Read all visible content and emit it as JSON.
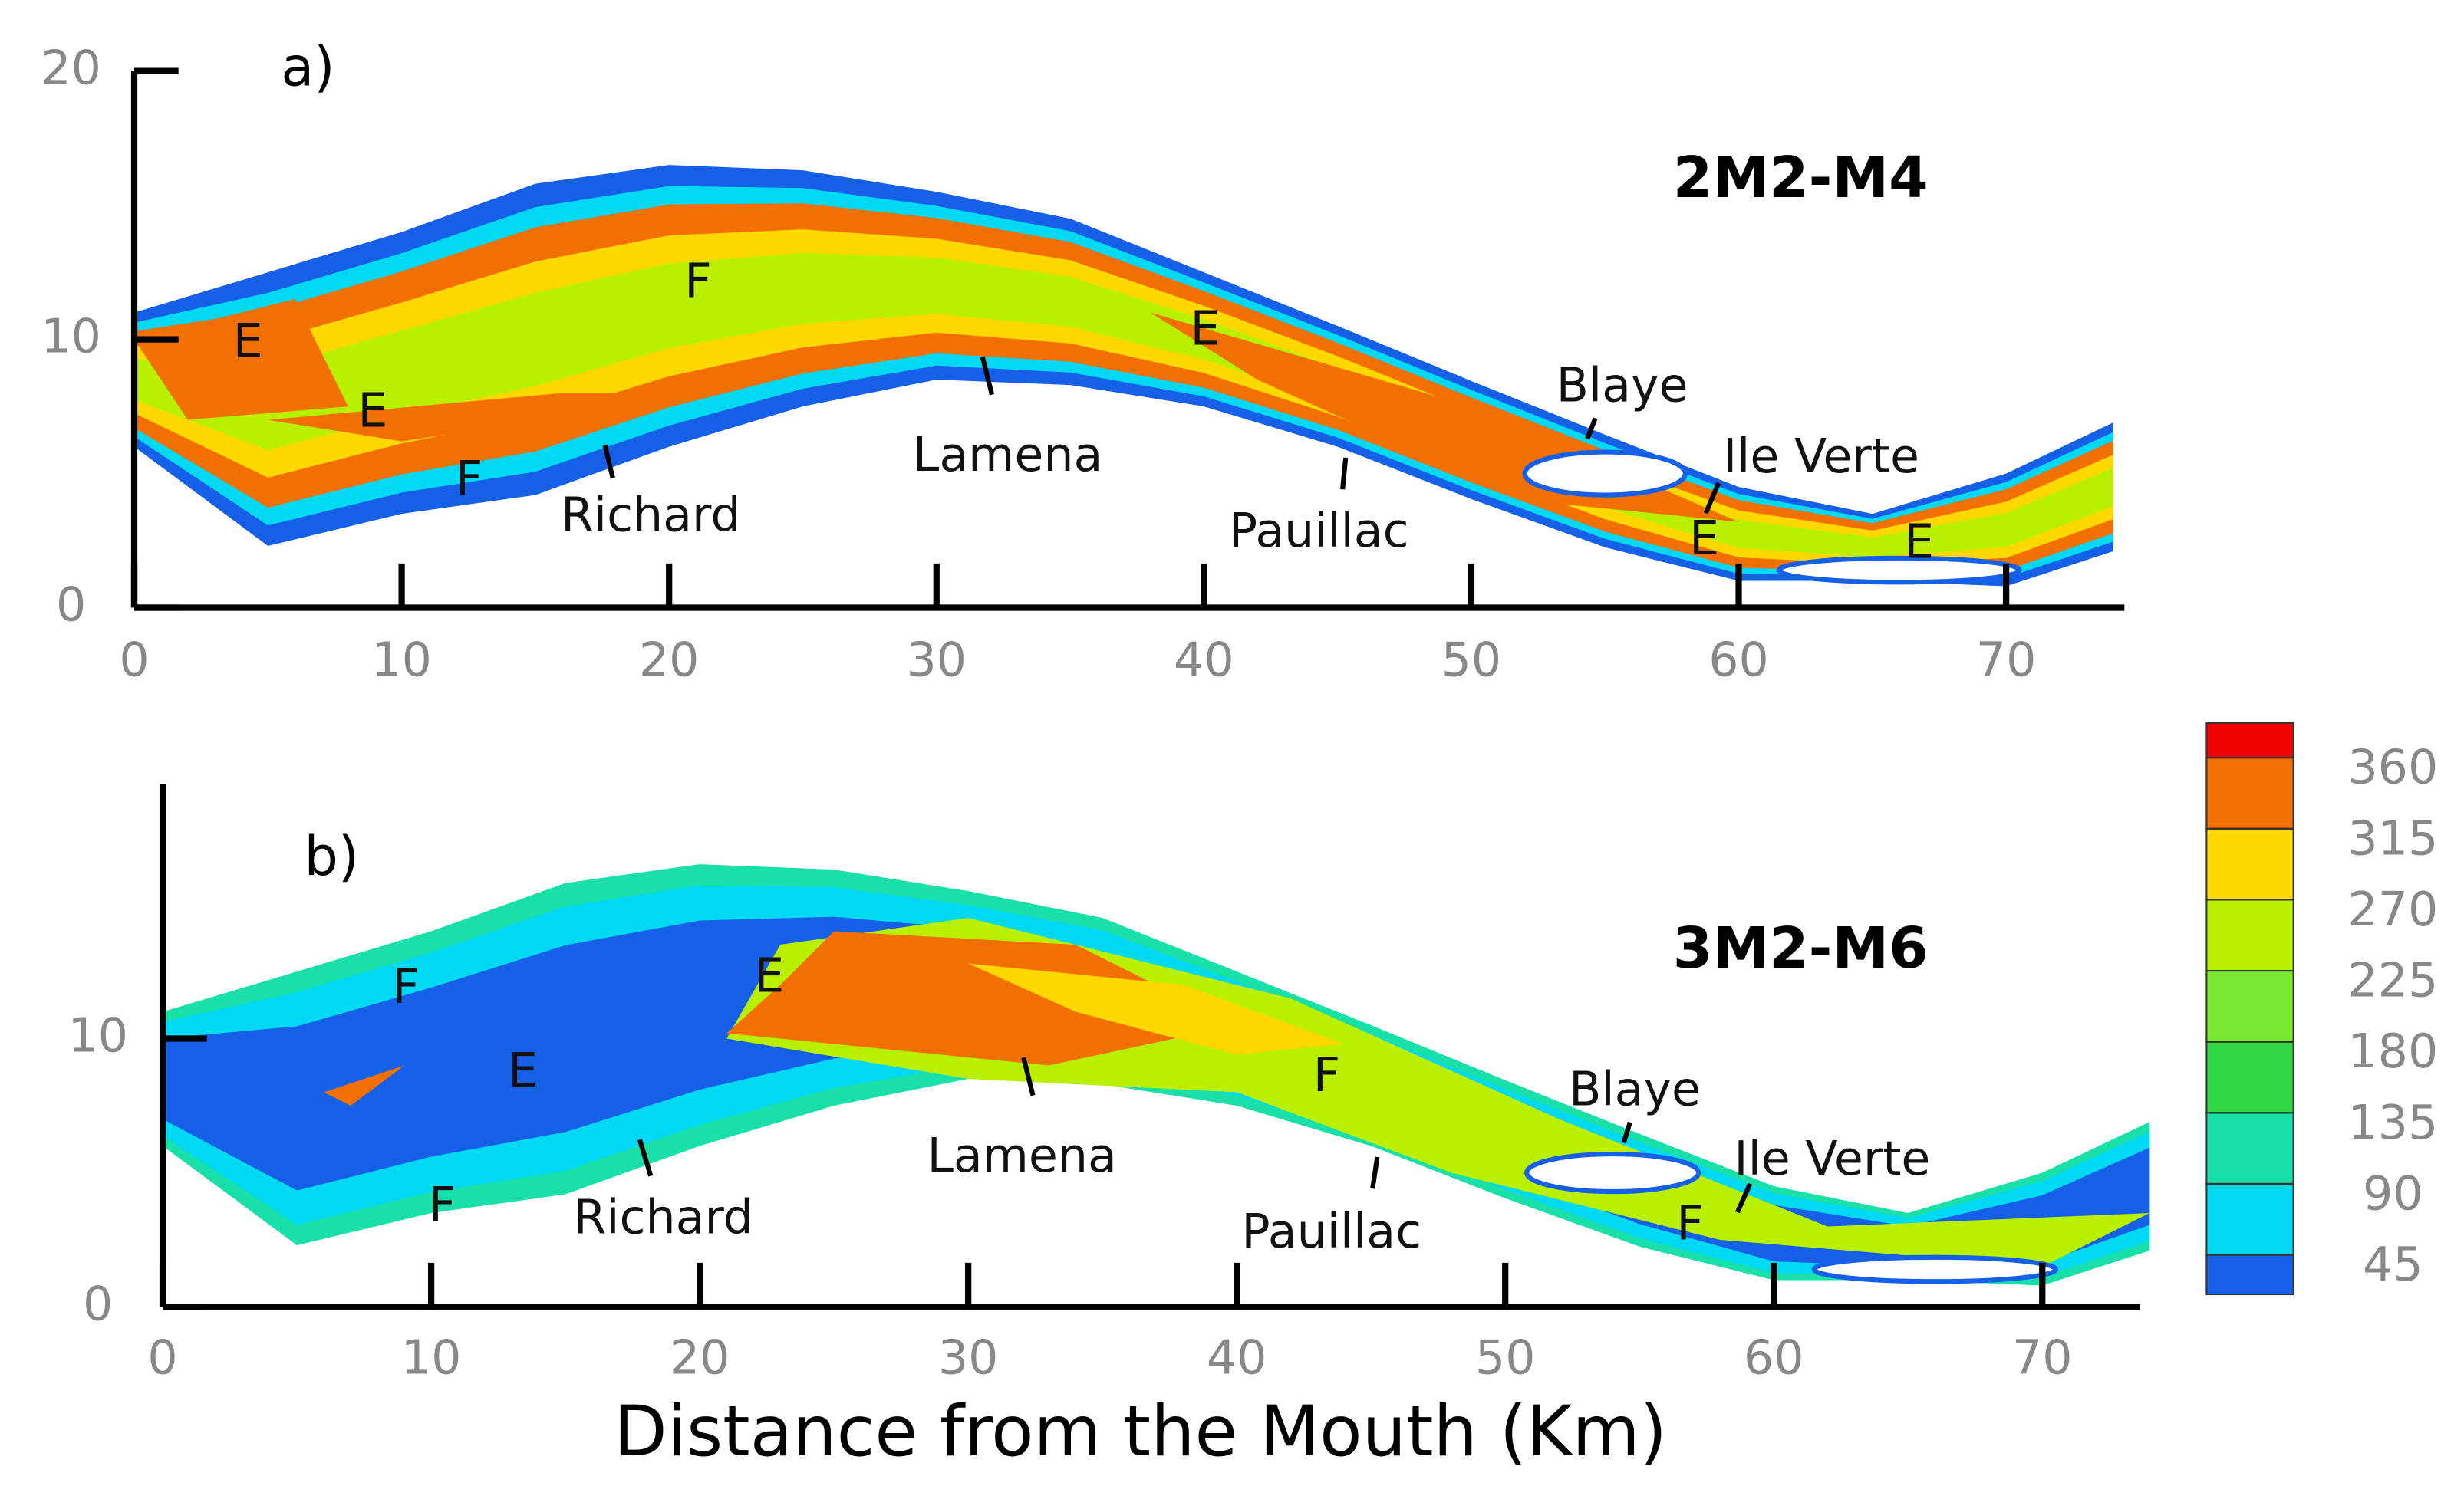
{
  "chart_data": [
    {
      "type": "contour",
      "title": "a)",
      "run": "2M2-M4",
      "xlim": [
        0,
        74.4
      ],
      "ylim": [
        0,
        20
      ],
      "xticks": [
        0,
        10,
        20,
        30,
        40,
        50,
        60,
        70
      ],
      "yticks": [
        0,
        10,
        20
      ],
      "markers": [
        "E",
        "E",
        "F",
        "F",
        "E",
        "E",
        "E"
      ],
      "places": [
        "Richard",
        "Lamena",
        "Pauillac",
        "Blaye",
        "Ile Verte"
      ]
    },
    {
      "type": "contour",
      "title": "b)",
      "run": "3M2-M6",
      "xlim": [
        0,
        73.7
      ],
      "ylim": [
        0,
        19.5
      ],
      "xticks": [
        0,
        10,
        20,
        30,
        40,
        50,
        60,
        70
      ],
      "yticks": [
        0,
        10
      ],
      "xlabel": "Distance from the Mouth (Km)",
      "markers": [
        "F",
        "E",
        "E",
        "F",
        "F",
        "F"
      ],
      "places": [
        "Richard",
        "Lamena",
        "Pauillac",
        "Blaye",
        "Ile Verte"
      ]
    }
  ],
  "colorbar": {
    "ticks": [
      45,
      90,
      135,
      180,
      225,
      270,
      315,
      360
    ],
    "colors": [
      "#1660e8",
      "#00d8f4",
      "#18e0a8",
      "#30d848",
      "#78e830",
      "#b8f000",
      "#ffd800",
      "#f27000",
      "#f00000"
    ]
  }
}
